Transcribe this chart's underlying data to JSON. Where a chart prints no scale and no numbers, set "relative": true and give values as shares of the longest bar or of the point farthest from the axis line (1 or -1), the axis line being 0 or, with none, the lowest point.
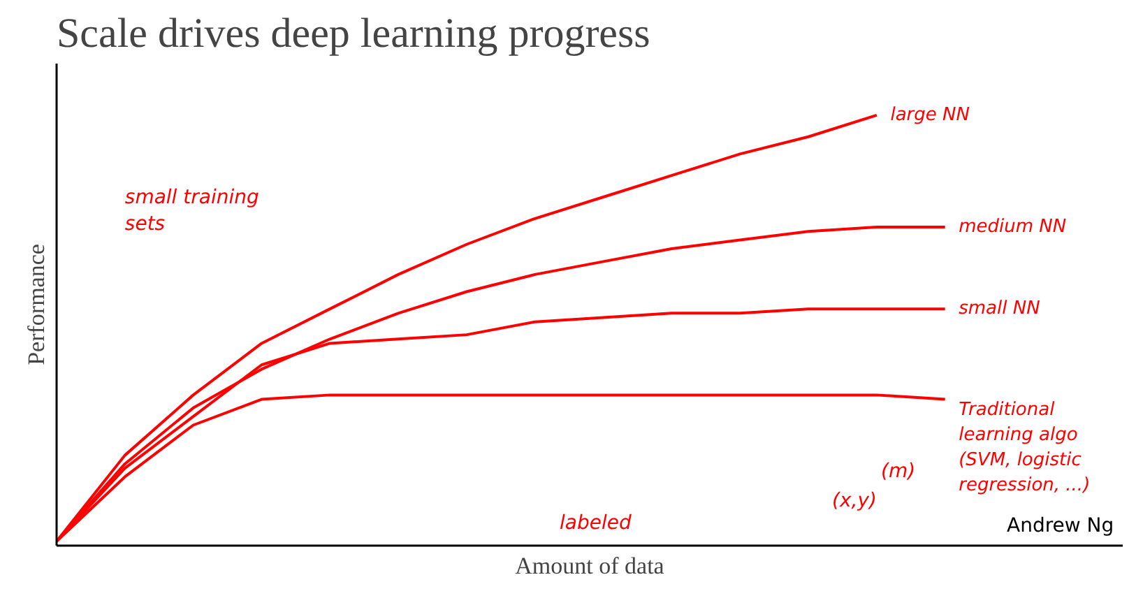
{
  "chart_data": {
    "type": "line",
    "title": "Scale drives deep learning progress",
    "xlabel": "Amount of data",
    "ylabel": "Performance",
    "relative": true,
    "categories": [
      null,
      null,
      null,
      null,
      null,
      null,
      null,
      null,
      null,
      null,
      null,
      null,
      null,
      null
    ],
    "series": [
      {
        "name": "large NN",
        "color": "#ff0000",
        "values": [
          0.01,
          0.21,
          0.35,
          0.47,
          0.55,
          0.63,
          0.7,
          0.76,
          0.81,
          0.86,
          0.91,
          0.95,
          1.0,
          null
        ]
      },
      {
        "name": "medium NN",
        "color": "#ff0000",
        "values": [
          0.01,
          0.19,
          0.32,
          0.41,
          0.48,
          0.54,
          0.59,
          0.63,
          0.66,
          0.69,
          0.71,
          0.73,
          0.74,
          0.74
        ]
      },
      {
        "name": "small NN",
        "color": "#ff0000",
        "values": [
          0.01,
          0.18,
          0.3,
          0.42,
          0.47,
          0.48,
          0.49,
          0.52,
          0.53,
          0.54,
          0.54,
          0.55,
          0.55,
          0.55
        ]
      },
      {
        "name": "Traditional learning algo (SVM, logistic regression, ...)",
        "color": "#ff0000",
        "values": [
          0.01,
          0.16,
          0.28,
          0.34,
          0.35,
          0.35,
          0.35,
          0.35,
          0.35,
          0.35,
          0.35,
          0.35,
          0.35,
          0.34
        ]
      }
    ],
    "annotations": [
      "small training sets",
      "(m)",
      "labeled",
      "(x,y)",
      "Andrew Ng"
    ],
    "marker": "none",
    "line_style": "solid"
  }
}
